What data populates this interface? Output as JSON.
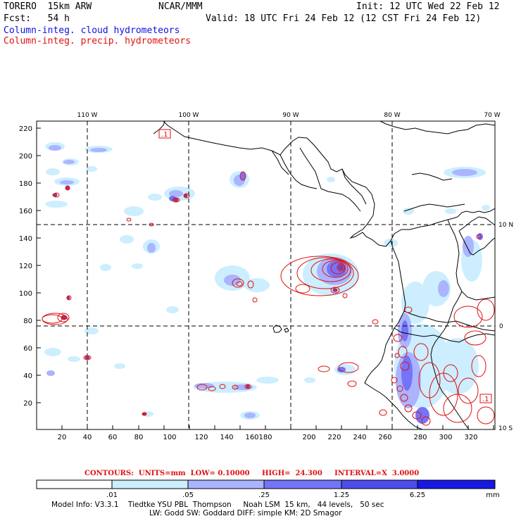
{
  "header": {
    "model": "TORERO  15km ARW",
    "center": "NCAR/MMM",
    "init": "Init: 12 UTC Wed 22 Feb 12",
    "fcst": "Fcst:   54 h",
    "valid": "Valid: 18 UTC Fri 24 Feb 12 (12 CST Fri 24 Feb 12)",
    "field1": "Column-integ. cloud hydrometeors",
    "field2": "Column-integ. precip. hydrometeors"
  },
  "map": {
    "lon_labels": [
      "110 W",
      "100 W",
      "90 W",
      "80 W",
      "70 W"
    ],
    "lat_labels": [
      "10 N",
      "0",
      "10 S"
    ],
    "x_ticks": [
      "20",
      "40",
      "60",
      "80",
      "100",
      "120",
      "140",
      "160",
      "180",
      "200",
      "220",
      "240",
      "260",
      "280",
      "300",
      "320"
    ],
    "y_ticks": [
      "20",
      "40",
      "60",
      "80",
      "100",
      "120",
      "140",
      "160",
      "180",
      "200",
      "220"
    ],
    "contour_labels": [
      ".1",
      ".1"
    ]
  },
  "contour_info": {
    "text": "CONTOURS:  UNITS=mm  LOW= 0.10000     HIGH=  24.300     INTERVAL=X  3.0000"
  },
  "colorbar": {
    "colors": [
      "#ffffff",
      "#cceeff",
      "#aab4ff",
      "#7474f8",
      "#4d4dee",
      "#1818e6"
    ],
    "labels": [
      ".01",
      ".05",
      ".25",
      "1.25",
      "6.25"
    ],
    "unit": "mm"
  },
  "model_info": {
    "line1": "Model Info: V3.3.1    Tiedtke YSU PBL  Thompson     Noah LSM  15 km,   44 levels,   50 sec",
    "line2": "LW: Godd SW: Goddard DIFF: simple KM: 2D Smagor"
  }
}
